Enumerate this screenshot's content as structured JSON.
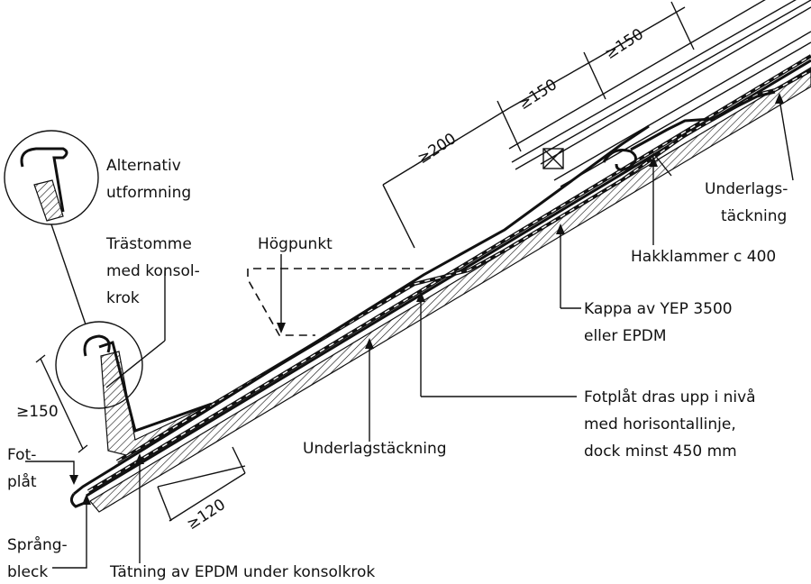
{
  "labels": {
    "alternativ_1": "Alternativ",
    "alternativ_2": "utformning",
    "trastomme_1": "Trästomme",
    "trastomme_2": "med konsol-",
    "trastomme_3": "krok",
    "hogpunkt": "Högpunkt",
    "fot_1": "Fot-",
    "fot_2": "plåt",
    "sprang_1": "Språng-",
    "sprang_2": "bleck",
    "tatning": "Tätning av EPDM under konsolkrok",
    "underlag_mid": "Underlagstäckning",
    "fotplat_1": "Fotplåt dras upp i nivå",
    "fotplat_2": "med horisontallinje,",
    "fotplat_3": "dock minst 450 mm",
    "kappa_1": "Kappa av YEP 3500",
    "kappa_2": "eller EPDM",
    "hakklammer": "Hakklammer c 400",
    "underlag_r1": "Underlags-",
    "underlag_r2": "täckning"
  },
  "dimensions": {
    "d150_left": "≥150",
    "d120": "≥120",
    "d200": "≥200",
    "d150_a": "≥150",
    "d150_b": "≥150"
  }
}
